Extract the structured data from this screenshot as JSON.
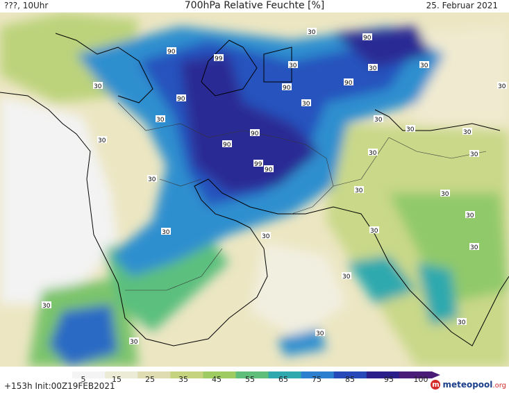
{
  "header": {
    "left": "???, 10Uhr",
    "title": "700hPa Relative Feuchte [%]",
    "date": "25. Februar 2021"
  },
  "footer": {
    "run_info": "+153h  Init:00Z19FEB2021",
    "logo_main": "meteopool",
    "logo_tld": ".org"
  },
  "colorbar": {
    "ticks": [
      "5",
      "15",
      "25",
      "35",
      "45",
      "55",
      "65",
      "75",
      "85",
      "95",
      "100"
    ],
    "colors": [
      "#f4f4f4",
      "#ecebd6",
      "#dedcb0",
      "#c5d37f",
      "#9fcc62",
      "#5fbf7a",
      "#2fa9ae",
      "#2c7fcf",
      "#2648b8",
      "#2a1f8a",
      "#4b1c77"
    ]
  },
  "map_labels": {
    "contours": [
      "90",
      "90",
      "99",
      "90",
      "90",
      "90",
      "90",
      "90",
      "99",
      "90",
      "30",
      "30",
      "30",
      "30",
      "30",
      "30",
      "30",
      "30",
      "30",
      "30",
      "30",
      "30",
      "30",
      "30",
      "30",
      "30",
      "30",
      "30",
      "30",
      "30",
      "30",
      "30",
      "30",
      "30",
      "30",
      "30",
      "30"
    ]
  }
}
